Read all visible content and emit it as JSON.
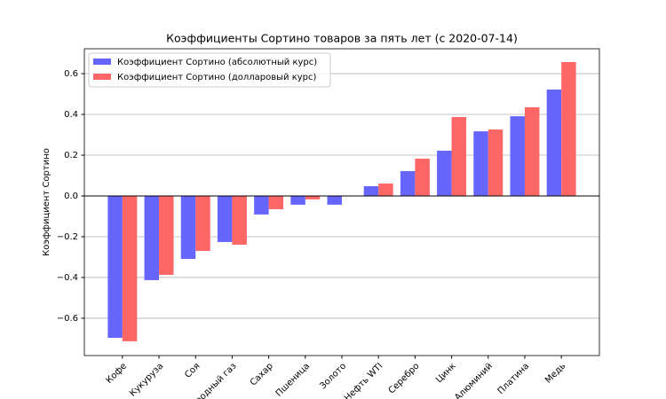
{
  "chart_data": {
    "type": "bar",
    "title": "Коэффициенты Сортино товаров за пять лет (с 2020-07-14)",
    "y_label": "Коэффициент Сортино",
    "categories": [
      "Кофе",
      "Кукуруза",
      "Соя",
      "Природный газ",
      "Сахар",
      "Пшеница",
      "Золото",
      "Нефть WTI",
      "Серебро",
      "Цинк",
      "Алюминий",
      "Платина",
      "Медь"
    ],
    "series": [
      {
        "name": "Коэффициент Сортино (абсолютный курс)",
        "color": "#6666ff",
        "values": [
          -0.696,
          -0.413,
          -0.309,
          -0.226,
          -0.091,
          -0.043,
          -0.043,
          0.048,
          0.122,
          0.222,
          0.317,
          0.391,
          0.522
        ]
      },
      {
        "name": "Коэффициент Сортино (долларовый курс)",
        "color": "#ff6666",
        "values": [
          -0.713,
          -0.387,
          -0.27,
          -0.239,
          -0.065,
          -0.017,
          0.002,
          0.061,
          0.183,
          0.387,
          0.326,
          0.435,
          0.657
        ]
      }
    ],
    "ylim": [
      -0.783,
      0.722
    ],
    "yticks": [
      {
        "value": -0.6,
        "label": "−0.6"
      },
      {
        "value": -0.4,
        "label": "−0.4"
      },
      {
        "value": -0.2,
        "label": "−0.2"
      },
      {
        "value": 0,
        "label": "0.0"
      },
      0.2,
      0.4,
      0.6
    ],
    "grid": true,
    "legend": "upper-left"
  }
}
